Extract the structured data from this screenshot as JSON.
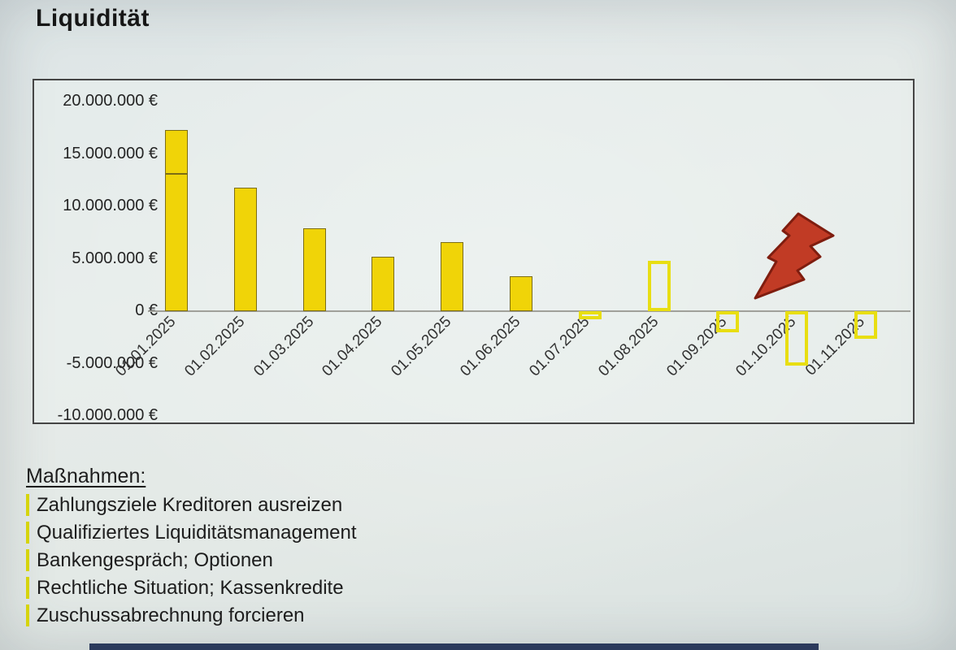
{
  "title": "Liquidität",
  "chart_data": {
    "type": "bar",
    "title": "Liquidität",
    "unit": "EUR",
    "categories": [
      "01.01.2025",
      "01.02.2025",
      "01.03.2025",
      "01.04.2025",
      "01.05.2025",
      "01.06.2025",
      "01.07.2025",
      "01.08.2025",
      "01.09.2025",
      "01.10.2025",
      "01.11.2025"
    ],
    "values": [
      17300000,
      11800000,
      7900000,
      5200000,
      6600000,
      3300000,
      -800000,
      4800000,
      -2000000,
      -5200000,
      -2600000
    ],
    "bar_styles": [
      "filled",
      "filled",
      "filled",
      "filled",
      "filled",
      "filled",
      "outline",
      "outline",
      "outline",
      "outline",
      "outline"
    ],
    "first_bar_segment_divider": 13200000,
    "y_ticks": [
      {
        "value": 20000000,
        "label": "20.000.000 €"
      },
      {
        "value": 15000000,
        "label": "15.000.000 €"
      },
      {
        "value": 10000000,
        "label": "10.000.000 €"
      },
      {
        "value": 5000000,
        "label": "5.000.000 €"
      },
      {
        "value": 0,
        "label": "0 €"
      },
      {
        "value": -5000000,
        "label": "-5.000.000 €"
      },
      {
        "value": -10000000,
        "label": "-10.000.000 €"
      }
    ],
    "ylim": [
      -10000000,
      20000000
    ],
    "xlabel": "",
    "ylabel": "",
    "grid": "zero-axis-only",
    "legend": "none",
    "annotations": [
      {
        "type": "lightning-bolt",
        "near_category": "01.10.2025",
        "meaning": "liquidity-crisis warning"
      }
    ]
  },
  "measures": {
    "heading": "Maßnahmen:",
    "items": [
      "Zahlungsziele Kreditoren ausreizen",
      "Qualifiziertes Liquiditätsmanagement",
      "Bankengespräch; Optionen",
      "Rechtliche Situation; Kassenkredite",
      "Zuschussabrechnung forcieren"
    ]
  },
  "colors": {
    "bar_fill": "#f0d408",
    "bar_border": "#7c6d15",
    "bar_outline": "#e8de12",
    "axis_line": "#a0a09a",
    "lightning_fill": "#c13b25",
    "lightning_stroke": "#7f1d0f",
    "bullet": "#d6d40a",
    "text": "#1d1d1d",
    "footer_bar": "#2b3a5c"
  }
}
